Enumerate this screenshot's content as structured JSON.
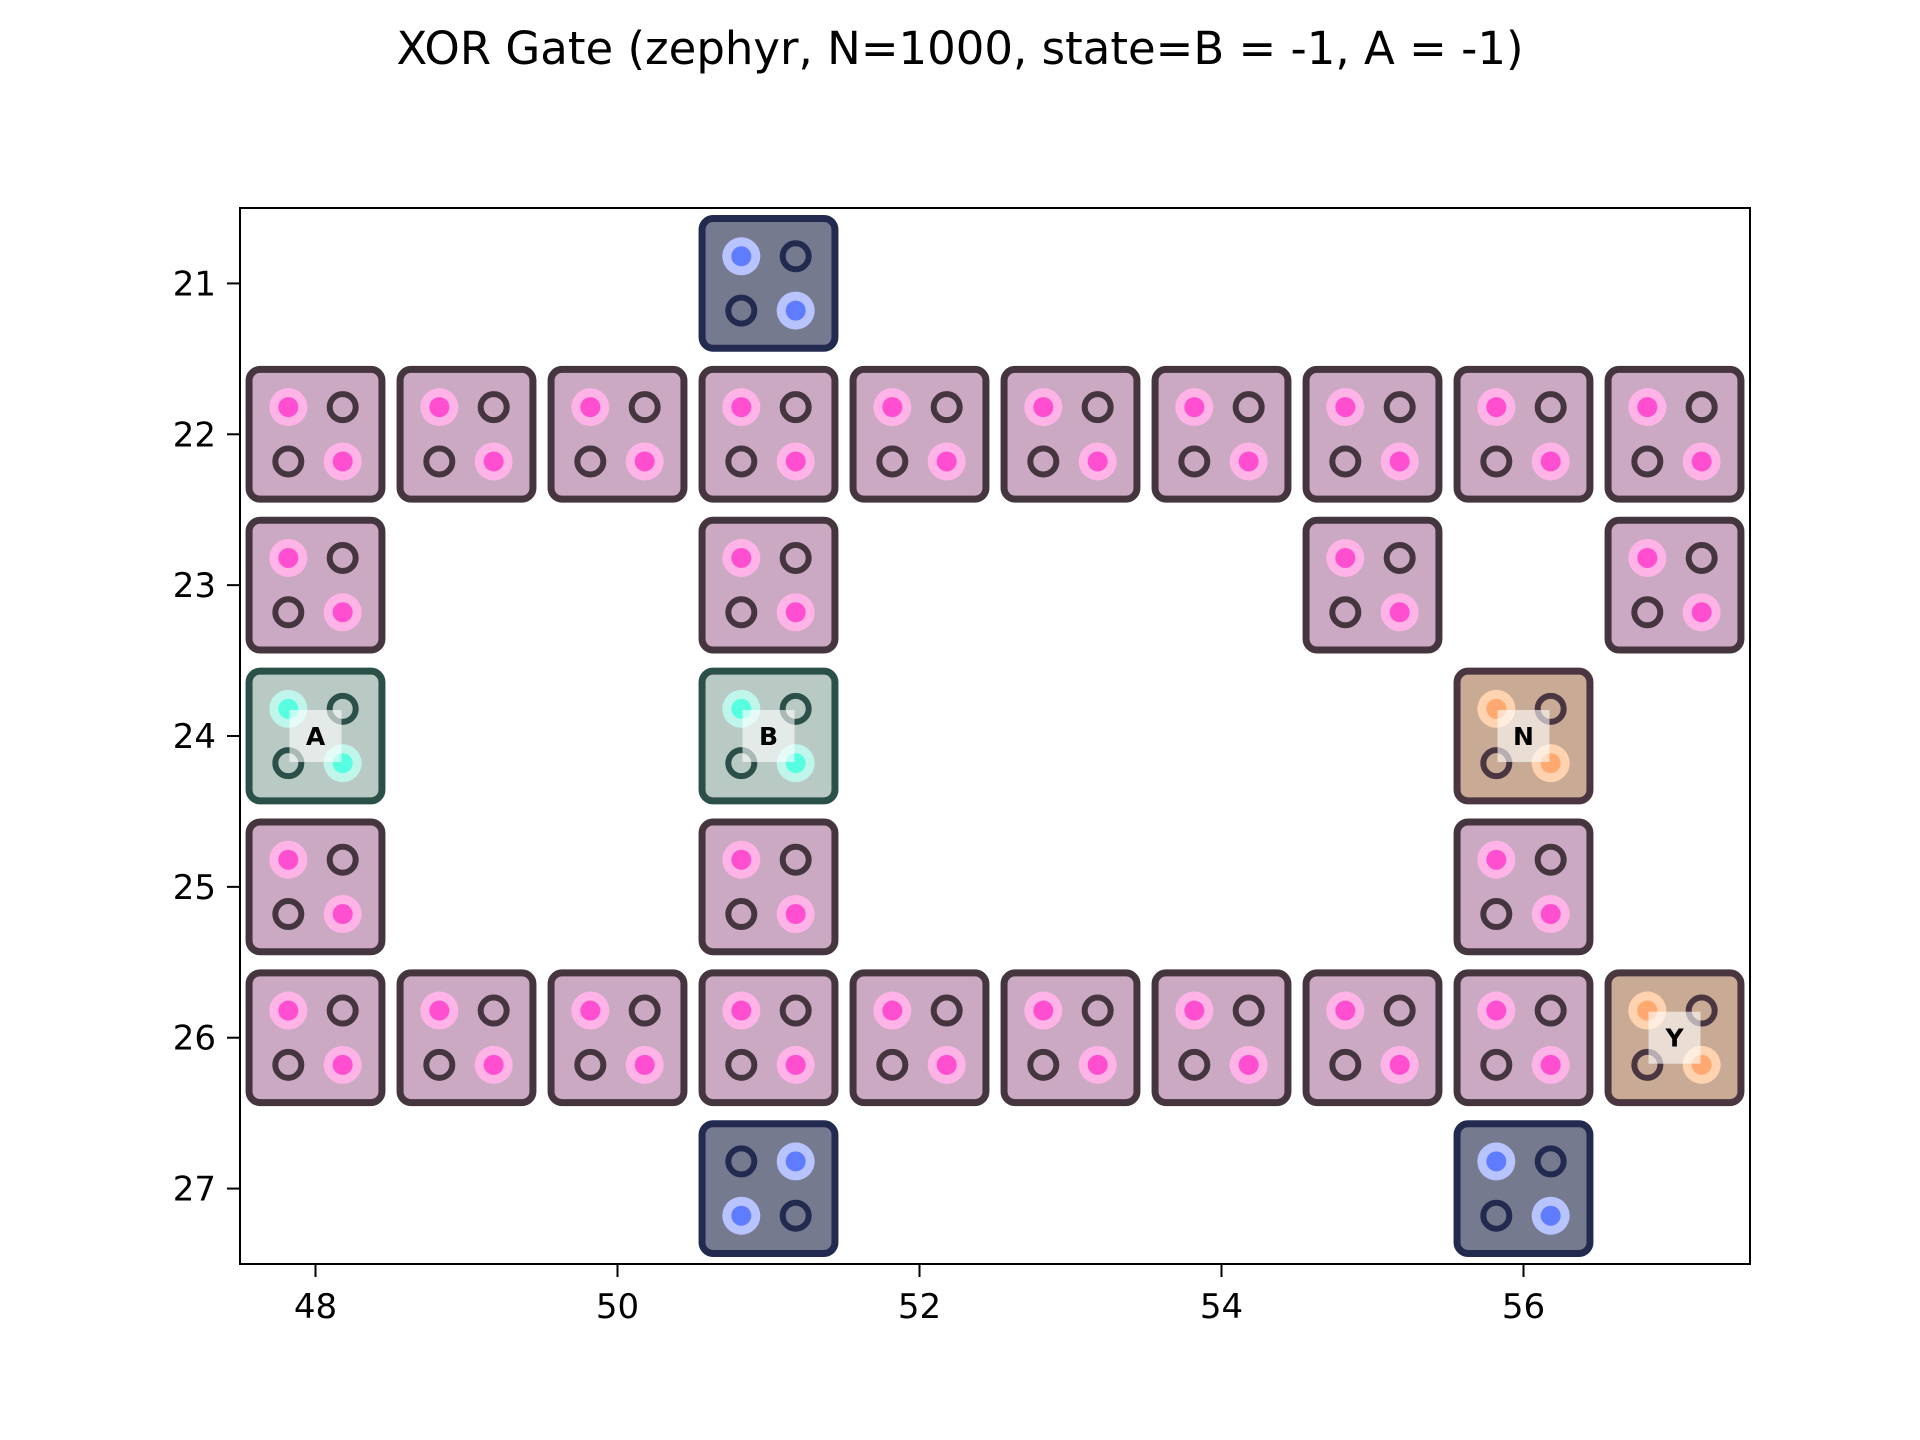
{
  "chart_data": {
    "type": "diagram",
    "title": "XOR Gate (zephyr, N=1000, state=B = -1, A = -1)",
    "xlabel": "",
    "ylabel": "",
    "xlim": [
      47.5,
      57.5
    ],
    "ylim": [
      27.5,
      20.5
    ],
    "x_ticks": [
      48,
      50,
      52,
      54,
      56
    ],
    "y_ticks": [
      21,
      22,
      23,
      24,
      25,
      26,
      27
    ],
    "grid": false,
    "legend": "none",
    "styles": {
      "wire": {
        "fill": "#cba9c3",
        "edge": "#44353f",
        "dot": "#ff4fd0",
        "halo": "#ffb3e6",
        "ring": "#44353f"
      },
      "input": {
        "fill": "#b9cac5",
        "edge": "#2b5049",
        "dot": "#55ffe0",
        "halo": "#bff5ea",
        "ring": "#2b5049"
      },
      "output": {
        "fill": "#c8aa95",
        "edge": "#4a3640",
        "dot": "#ffa970",
        "halo": "#ffd2b0",
        "ring": "#4a3640"
      },
      "anchor": {
        "fill": "#767a8e",
        "edge": "#232a50",
        "dot": "#5f7cff",
        "halo": "#b8c4ff",
        "ring": "#232a50"
      }
    },
    "cells": [
      {
        "x": 51,
        "y": 21,
        "type": "anchor",
        "flip": false,
        "label": ""
      },
      {
        "x": 48,
        "y": 22,
        "type": "wire",
        "flip": false,
        "label": ""
      },
      {
        "x": 49,
        "y": 22,
        "type": "wire",
        "flip": false,
        "label": ""
      },
      {
        "x": 50,
        "y": 22,
        "type": "wire",
        "flip": false,
        "label": ""
      },
      {
        "x": 51,
        "y": 22,
        "type": "wire",
        "flip": false,
        "label": ""
      },
      {
        "x": 52,
        "y": 22,
        "type": "wire",
        "flip": false,
        "label": ""
      },
      {
        "x": 53,
        "y": 22,
        "type": "wire",
        "flip": false,
        "label": ""
      },
      {
        "x": 54,
        "y": 22,
        "type": "wire",
        "flip": false,
        "label": ""
      },
      {
        "x": 55,
        "y": 22,
        "type": "wire",
        "flip": false,
        "label": ""
      },
      {
        "x": 56,
        "y": 22,
        "type": "wire",
        "flip": false,
        "label": ""
      },
      {
        "x": 57,
        "y": 22,
        "type": "wire",
        "flip": false,
        "label": ""
      },
      {
        "x": 48,
        "y": 23,
        "type": "wire",
        "flip": false,
        "label": ""
      },
      {
        "x": 51,
        "y": 23,
        "type": "wire",
        "flip": false,
        "label": ""
      },
      {
        "x": 55,
        "y": 23,
        "type": "wire",
        "flip": false,
        "label": ""
      },
      {
        "x": 57,
        "y": 23,
        "type": "wire",
        "flip": false,
        "label": ""
      },
      {
        "x": 48,
        "y": 24,
        "type": "input",
        "flip": false,
        "label": "A"
      },
      {
        "x": 51,
        "y": 24,
        "type": "input",
        "flip": false,
        "label": "B"
      },
      {
        "x": 56,
        "y": 24,
        "type": "output",
        "flip": false,
        "label": "N"
      },
      {
        "x": 48,
        "y": 25,
        "type": "wire",
        "flip": false,
        "label": ""
      },
      {
        "x": 51,
        "y": 25,
        "type": "wire",
        "flip": false,
        "label": ""
      },
      {
        "x": 56,
        "y": 25,
        "type": "wire",
        "flip": false,
        "label": ""
      },
      {
        "x": 48,
        "y": 26,
        "type": "wire",
        "flip": false,
        "label": ""
      },
      {
        "x": 49,
        "y": 26,
        "type": "wire",
        "flip": false,
        "label": ""
      },
      {
        "x": 50,
        "y": 26,
        "type": "wire",
        "flip": false,
        "label": ""
      },
      {
        "x": 51,
        "y": 26,
        "type": "wire",
        "flip": false,
        "label": ""
      },
      {
        "x": 52,
        "y": 26,
        "type": "wire",
        "flip": false,
        "label": ""
      },
      {
        "x": 53,
        "y": 26,
        "type": "wire",
        "flip": false,
        "label": ""
      },
      {
        "x": 54,
        "y": 26,
        "type": "wire",
        "flip": false,
        "label": ""
      },
      {
        "x": 55,
        "y": 26,
        "type": "wire",
        "flip": false,
        "label": ""
      },
      {
        "x": 56,
        "y": 26,
        "type": "wire",
        "flip": false,
        "label": ""
      },
      {
        "x": 57,
        "y": 26,
        "type": "output",
        "flip": false,
        "label": "Y"
      },
      {
        "x": 51,
        "y": 27,
        "type": "anchor",
        "flip": true,
        "label": ""
      },
      {
        "x": 56,
        "y": 27,
        "type": "anchor",
        "flip": false,
        "label": ""
      }
    ]
  }
}
